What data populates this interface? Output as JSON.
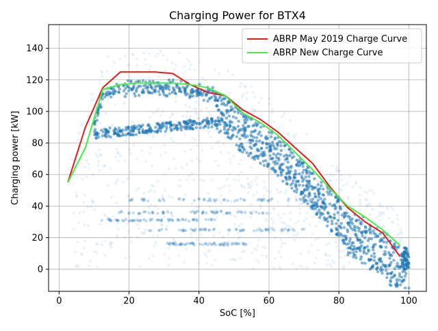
{
  "chart_data": {
    "type": "scatter",
    "title": "Charging Power for BTX4",
    "xlabel": "SoC [%]",
    "ylabel": "Charging power [kW]",
    "xlim": [
      -3,
      105
    ],
    "ylim": [
      -14,
      155
    ],
    "xticks": [
      0,
      20,
      40,
      60,
      80,
      100
    ],
    "yticks": [
      0,
      20,
      40,
      60,
      80,
      100,
      120,
      140
    ],
    "grid": true,
    "legend_position": "top-right",
    "scatter_color": "#1f77b4",
    "series": [
      {
        "name": "ABRP May 2019 Charge Curve",
        "color": "#e41a1c",
        "x": [
          2.5,
          7.5,
          12.5,
          17.5,
          22.5,
          27.5,
          32.5,
          37.5,
          42.5,
          47.5,
          52.5,
          57.5,
          62.5,
          67.5,
          72.5,
          77.5,
          82.5,
          87.5,
          92.5,
          97.5
        ],
        "values": [
          55,
          90,
          115,
          125,
          125,
          125,
          124,
          117,
          112,
          110,
          101,
          95,
          87,
          77,
          67,
          52,
          39,
          30,
          23,
          8
        ]
      },
      {
        "name": "ABRP New Charge Curve",
        "color": "#44ee44",
        "x": [
          2.5,
          7.5,
          12.5,
          17.5,
          22.5,
          27.5,
          32.5,
          37.5,
          42.5,
          47.5,
          52.5,
          57.5,
          62.5,
          67.5,
          72.5,
          77.5,
          82.5,
          87.5,
          92.5,
          97.5
        ],
        "values": [
          55,
          77,
          114,
          117,
          118,
          118,
          118,
          117,
          115,
          110,
          99,
          93,
          85,
          74,
          63,
          51,
          40,
          33,
          25,
          15
        ]
      }
    ]
  }
}
